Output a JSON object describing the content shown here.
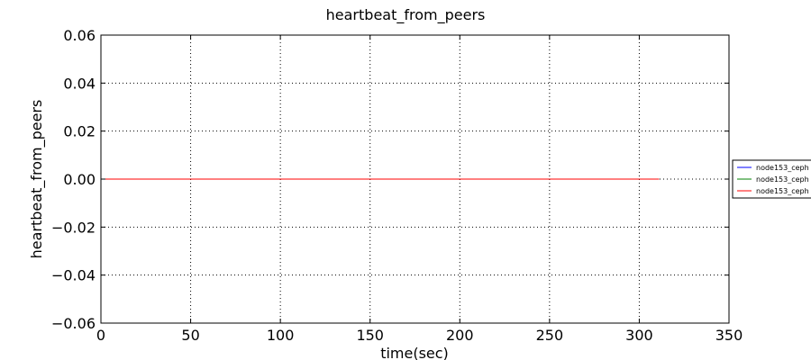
{
  "chart_data": {
    "type": "line",
    "title": "heartbeat_from_peers",
    "xlabel": "time(sec)",
    "ylabel": "heartbeat_from_peers",
    "xlim": [
      0,
      350
    ],
    "ylim": [
      -0.06,
      0.06
    ],
    "xticks": [
      0,
      50,
      100,
      150,
      200,
      250,
      300,
      350
    ],
    "xtick_labels": [
      "0",
      "50",
      "100",
      "150",
      "200",
      "250",
      "300",
      "350"
    ],
    "yticks": [
      0.06,
      0.04,
      0.02,
      0.0,
      -0.02,
      -0.04,
      -0.06
    ],
    "ytick_labels": [
      "0.06",
      "0.04",
      "0.02",
      "0.00",
      "−0.02",
      "−0.04",
      "−0.06"
    ],
    "grid": true,
    "legend_position": "right",
    "series": [
      {
        "name": "node153_ceph",
        "color": "#0000ff",
        "x": [
          0,
          311
        ],
        "y": [
          0,
          0
        ]
      },
      {
        "name": "node153_ceph",
        "color": "#008000",
        "x": [
          0,
          311
        ],
        "y": [
          0,
          0
        ]
      },
      {
        "name": "node153_ceph",
        "color": "#ff0000",
        "x": [
          0,
          311
        ],
        "y": [
          0,
          0
        ]
      }
    ]
  }
}
